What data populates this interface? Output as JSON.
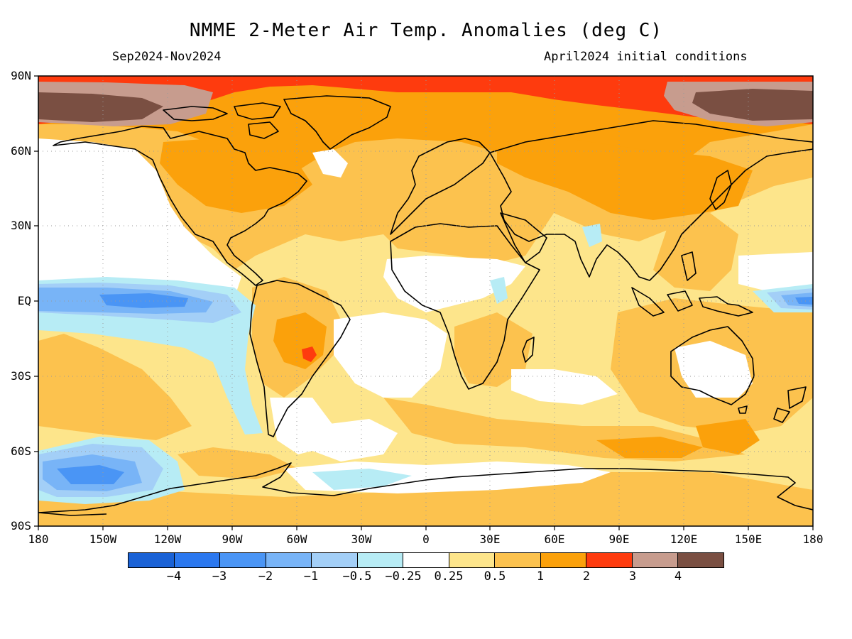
{
  "header": {
    "title": "NMME 2-Meter Air Temp. Anomalies (deg C)",
    "period": "Sep2024-Nov2024",
    "init": "April2024 initial conditions"
  },
  "axes": {
    "lat_labels": [
      "90N",
      "60N",
      "30N",
      "EQ",
      "30S",
      "60S",
      "90S"
    ],
    "lon_labels": [
      "180",
      "150W",
      "120W",
      "90W",
      "60W",
      "30W",
      "0",
      "30E",
      "60E",
      "90E",
      "120E",
      "150E",
      "180"
    ]
  },
  "colorbar": {
    "colors": [
      "#1a62d6",
      "#2b78ef",
      "#4a95f5",
      "#78b4f7",
      "#a3cff7",
      "#b7ecf5",
      "#ffffff",
      "#fde58b",
      "#fcc24e",
      "#fba10b",
      "#fe3b0e",
      "#c79c8e",
      "#7a4f42"
    ],
    "labels": [
      "−4",
      "−3",
      "−2",
      "−1",
      "−0.5",
      "−0.25",
      "0.25",
      "0.5",
      "1",
      "2",
      "3",
      "4"
    ]
  }
}
